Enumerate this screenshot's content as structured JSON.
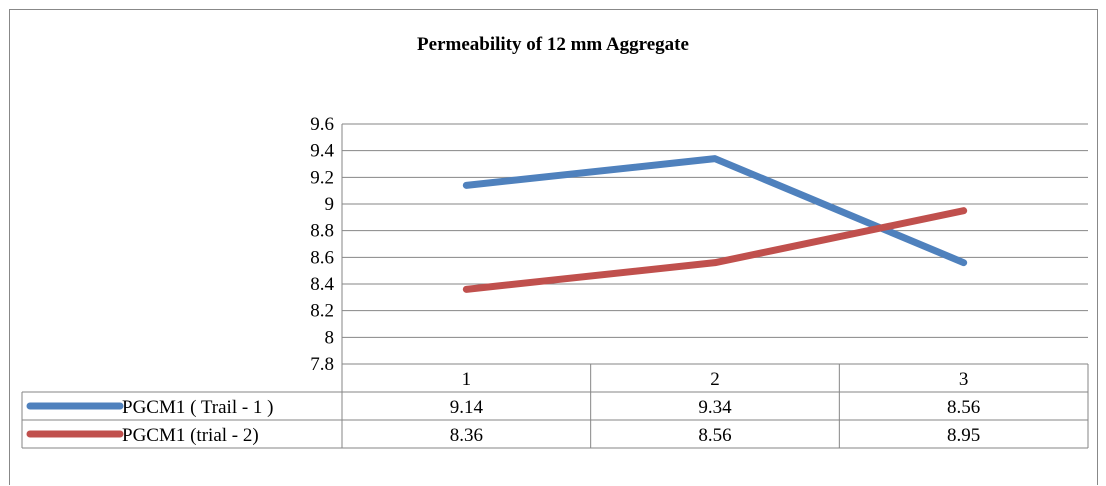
{
  "chart_data": {
    "type": "line",
    "title": "Permeability of 12 mm Aggregate",
    "categories": [
      "1",
      "2",
      "3"
    ],
    "ylim": [
      7.8,
      9.6
    ],
    "yticks": [
      "9.6",
      "9.4",
      "9.2",
      "9",
      "8.8",
      "8.6",
      "8.4",
      "8.2",
      "8",
      "7.8"
    ],
    "grid": true,
    "legend": "data-table",
    "series": [
      {
        "name": "PGCM1 ( Trail - 1 )",
        "values": [
          9.14,
          9.34,
          8.56
        ],
        "labels": [
          "9.14",
          "9.34",
          "8.56"
        ],
        "color": "#4F81BD"
      },
      {
        "name": "PGCM1 (trial - 2)",
        "values": [
          8.36,
          8.56,
          8.95
        ],
        "labels": [
          "8.36",
          "8.56",
          "8.95"
        ],
        "color": "#C0504D"
      }
    ]
  }
}
